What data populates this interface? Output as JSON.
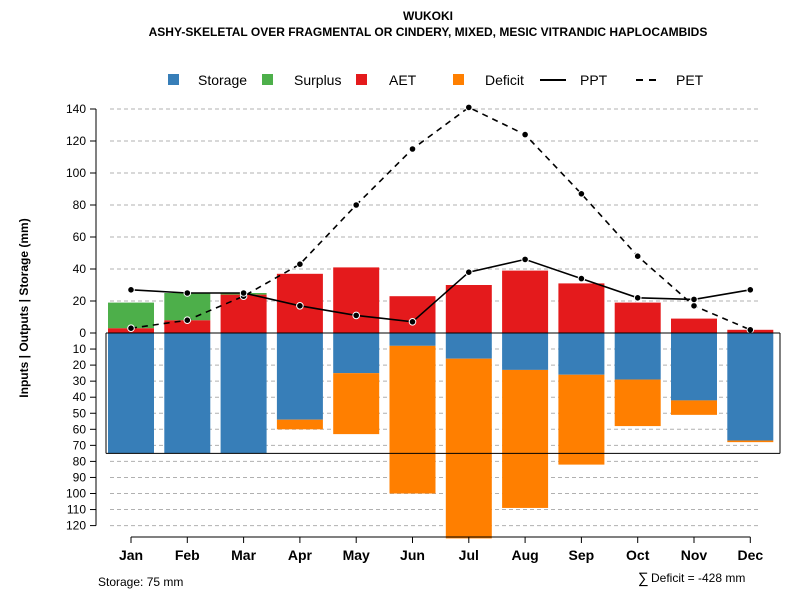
{
  "chart_data": {
    "type": "bar",
    "title": "WUKOKI",
    "subtitle": "ASHY-SKELETAL OVER FRAGMENTAL OR CINDERY, MIXED, MESIC VITRANDIC HAPLOCAMBIDS",
    "ylabel": "Inputs | Outputs | Storage    (mm)",
    "ylim_upper": [
      0,
      145
    ],
    "ylim_lower": [
      0,
      120
    ],
    "yticks_upper": [
      0,
      20,
      40,
      60,
      80,
      100,
      120,
      140
    ],
    "yticks_lower": [
      10,
      20,
      30,
      40,
      50,
      60,
      70,
      80,
      90,
      100,
      110,
      120
    ],
    "categories": [
      "Jan",
      "Feb",
      "Mar",
      "Apr",
      "May",
      "Jun",
      "Jul",
      "Aug",
      "Sep",
      "Oct",
      "Nov",
      "Dec"
    ],
    "series": [
      {
        "name": "Storage",
        "color": "#377EB8",
        "values": [
          75,
          75,
          75,
          54,
          25,
          8,
          16,
          23,
          26,
          29,
          42,
          67
        ]
      },
      {
        "name": "Surplus",
        "color": "#4DAF4A",
        "values": [
          16,
          17,
          1,
          0,
          0,
          0,
          0,
          0,
          0,
          0,
          0,
          0
        ]
      },
      {
        "name": "AET",
        "color": "#E41A1C",
        "values": [
          3,
          8,
          24,
          37,
          41,
          23,
          30,
          39,
          31,
          19,
          9,
          2
        ]
      },
      {
        "name": "Deficit",
        "color": "#FF7F00",
        "values": [
          0,
          0,
          0,
          6,
          38,
          92,
          112,
          86,
          56,
          29,
          9,
          1
        ]
      },
      {
        "name": "PPT",
        "color": "#000000",
        "style": "solid",
        "values": [
          27,
          25,
          25,
          17,
          11,
          7,
          38,
          46,
          34,
          22,
          21,
          27
        ]
      },
      {
        "name": "PET",
        "color": "#000000",
        "style": "dashed",
        "values": [
          3,
          8,
          23,
          43,
          80,
          115,
          141,
          124,
          87,
          48,
          17,
          2
        ]
      }
    ],
    "storage_capacity": 75,
    "legend_position": "top",
    "grid": true
  },
  "footer": {
    "storage_label": "Storage: 75 mm",
    "deficit_symbol": "∑",
    "deficit_label": "Deficit = -428 mm"
  }
}
